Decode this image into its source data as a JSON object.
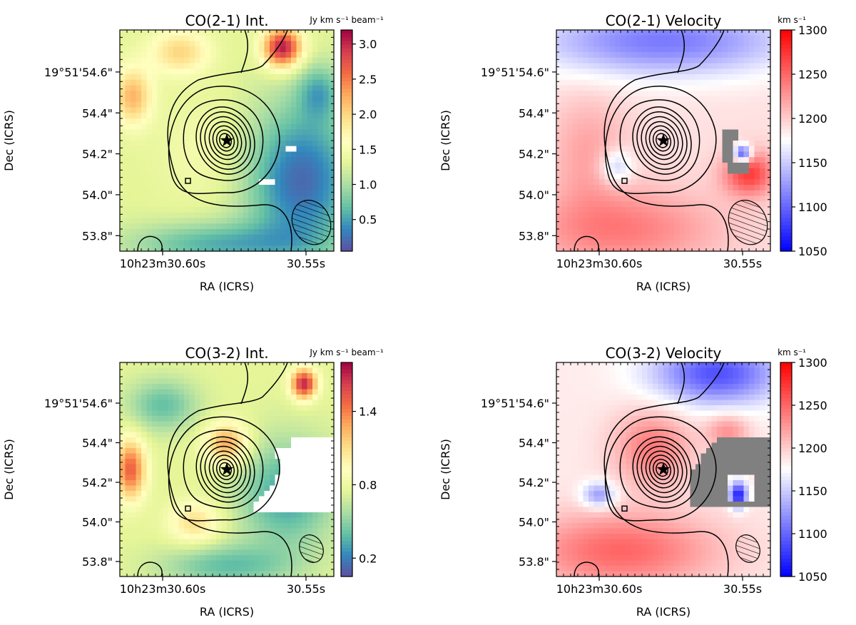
{
  "chart_data": [
    {
      "type": "heatmap",
      "title": "CO(2-1) Int.",
      "xlabel": "RA (ICRS)",
      "ylabel": "Dec (ICRS)",
      "x_ticks": [
        "10h23m30.60s",
        "30.55s"
      ],
      "y_ticks": [
        "19°51'54.6\"",
        "54.4\"",
        "54.2\"",
        "54.0\"",
        "53.8\""
      ],
      "colorbar": {
        "label": "Jy km s⁻¹ beam⁻¹",
        "cmap": "Spectral_r",
        "vmin": 0.05,
        "vmax": 3.2,
        "ticks": [
          {
            "value": 3.0,
            "label": "3.0"
          },
          {
            "value": 2.5,
            "label": "2.5"
          },
          {
            "value": 2.0,
            "label": "2.0"
          },
          {
            "value": 1.5,
            "label": "1.5"
          },
          {
            "value": 1.0,
            "label": "1.0"
          },
          {
            "value": 0.5,
            "label": "0.5"
          }
        ]
      },
      "marker": "star",
      "contours": true,
      "beam": "hatched-ellipse",
      "blobs": [
        {
          "v": 3.1,
          "u": 0.76,
          "w": 0.08,
          "sx": 0.09,
          "sy": 0.09
        },
        {
          "v": 2.2,
          "u": 0.06,
          "w": 0.3,
          "sx": 0.09,
          "sy": 0.13
        },
        {
          "v": 1.5,
          "u": 0.4,
          "w": 0.55,
          "sx": 0.22,
          "sy": 0.24
        },
        {
          "v": 0.2,
          "u": 0.85,
          "w": 0.68,
          "sx": 0.26,
          "sy": 0.34
        },
        {
          "v": 0.6,
          "u": 0.45,
          "w": 0.97,
          "sx": 0.4,
          "sy": 0.1
        },
        {
          "v": 2.0,
          "u": 0.28,
          "w": 0.1,
          "sx": 0.14,
          "sy": 0.1
        },
        {
          "v": 0.7,
          "u": 0.93,
          "w": 0.28,
          "sx": 0.1,
          "sy": 0.12
        }
      ],
      "base_value": 1.3,
      "masked": "scatter"
    },
    {
      "type": "heatmap",
      "title": "CO(2-1) Velocity",
      "xlabel": "RA (ICRS)",
      "ylabel": "Dec (ICRS)",
      "x_ticks": [
        "10h23m30.60s",
        "30.55s"
      ],
      "y_ticks": [
        "19°51'54.6\"",
        "54.4\"",
        "54.2\"",
        "54.0\"",
        "53.8\""
      ],
      "colorbar": {
        "label": "km s⁻¹",
        "cmap": "bwr",
        "vmin": 1050,
        "vmax": 1300,
        "ticks": [
          {
            "value": 1300,
            "label": "1300"
          },
          {
            "value": 1250,
            "label": "1250"
          },
          {
            "value": 1200,
            "label": "1200"
          },
          {
            "value": 1150,
            "label": "1150"
          },
          {
            "value": 1100,
            "label": "1100"
          },
          {
            "value": 1050,
            "label": "1050"
          }
        ]
      },
      "marker": "star",
      "contours": true,
      "beam": "hatched-ellipse",
      "blobs": [
        {
          "v": 1110,
          "u": 0.5,
          "w": 0.05,
          "sx": 0.6,
          "sy": 0.16
        },
        {
          "v": 1240,
          "u": 0.3,
          "w": 0.9,
          "sx": 0.45,
          "sy": 0.18
        },
        {
          "v": 1220,
          "u": 0.15,
          "w": 0.55,
          "sx": 0.18,
          "sy": 0.25
        },
        {
          "v": 1270,
          "u": 0.9,
          "w": 0.65,
          "sx": 0.12,
          "sy": 0.1
        },
        {
          "v": 1070,
          "u": 0.87,
          "w": 0.56,
          "sx": 0.04,
          "sy": 0.04
        },
        {
          "v": 1140,
          "u": 0.28,
          "w": 0.62,
          "sx": 0.08,
          "sy": 0.08
        }
      ],
      "base_value": 1190,
      "masked": "patch"
    },
    {
      "type": "heatmap",
      "title": "CO(3-2) Int.",
      "xlabel": "RA (ICRS)",
      "ylabel": "Dec (ICRS)",
      "x_ticks": [
        "10h23m30.60s",
        "30.55s"
      ],
      "y_ticks": [
        "19°51'54.6\"",
        "54.4\"",
        "54.2\"",
        "54.0\"",
        "53.8\""
      ],
      "colorbar": {
        "label": "Jy km s⁻¹ beam⁻¹",
        "cmap": "Spectral_r",
        "vmin": 0.05,
        "vmax": 1.8,
        "ticks": [
          {
            "value": 1.4,
            "label": "1.4"
          },
          {
            "value": 0.8,
            "label": "0.8"
          },
          {
            "value": 0.2,
            "label": "0.2"
          }
        ]
      },
      "marker": "star",
      "contours": true,
      "beam": "hatched-ellipse",
      "blobs": [
        {
          "v": 1.7,
          "u": 0.86,
          "w": 0.1,
          "sx": 0.06,
          "sy": 0.07
        },
        {
          "v": 1.5,
          "u": 0.05,
          "w": 0.5,
          "sx": 0.07,
          "sy": 0.14
        },
        {
          "v": 1.3,
          "u": 0.5,
          "w": 0.38,
          "sx": 0.1,
          "sy": 0.1
        },
        {
          "v": 0.3,
          "u": 0.78,
          "w": 0.62,
          "sx": 0.22,
          "sy": 0.25
        },
        {
          "v": 0.4,
          "u": 0.2,
          "w": 0.2,
          "sx": 0.16,
          "sy": 0.12
        },
        {
          "v": 0.4,
          "u": 0.5,
          "w": 0.95,
          "sx": 0.3,
          "sy": 0.1
        },
        {
          "v": 1.1,
          "u": 0.35,
          "w": 0.75,
          "sx": 0.12,
          "sy": 0.1
        }
      ],
      "base_value": 0.75,
      "masked": "region"
    },
    {
      "type": "heatmap",
      "title": "CO(3-2) Velocity",
      "xlabel": "RA (ICRS)",
      "ylabel": "Dec (ICRS)",
      "x_ticks": [
        "10h23m30.60s",
        "30.55s"
      ],
      "y_ticks": [
        "19°51'54.6\"",
        "54.4\"",
        "54.2\"",
        "54.0\"",
        "53.8\""
      ],
      "colorbar": {
        "label": "km s⁻¹",
        "cmap": "bwr",
        "vmin": 1050,
        "vmax": 1300,
        "ticks": [
          {
            "value": 1300,
            "label": "1300"
          },
          {
            "value": 1250,
            "label": "1250"
          },
          {
            "value": 1200,
            "label": "1200"
          },
          {
            "value": 1150,
            "label": "1150"
          },
          {
            "value": 1100,
            "label": "1100"
          },
          {
            "value": 1050,
            "label": "1050"
          }
        ]
      },
      "marker": "star",
      "contours": true,
      "beam": "hatched-ellipse",
      "blobs": [
        {
          "v": 1090,
          "u": 0.75,
          "w": 0.05,
          "sx": 0.3,
          "sy": 0.15
        },
        {
          "v": 1250,
          "u": 0.3,
          "w": 0.88,
          "sx": 0.45,
          "sy": 0.18
        },
        {
          "v": 1240,
          "u": 0.45,
          "w": 0.4,
          "sx": 0.18,
          "sy": 0.18
        },
        {
          "v": 1120,
          "u": 0.2,
          "w": 0.62,
          "sx": 0.08,
          "sy": 0.06
        },
        {
          "v": 1060,
          "u": 0.85,
          "w": 0.62,
          "sx": 0.04,
          "sy": 0.06
        },
        {
          "v": 1230,
          "u": 0.8,
          "w": 0.32,
          "sx": 0.1,
          "sy": 0.08
        }
      ],
      "base_value": 1185,
      "masked": "bigpatch"
    }
  ]
}
